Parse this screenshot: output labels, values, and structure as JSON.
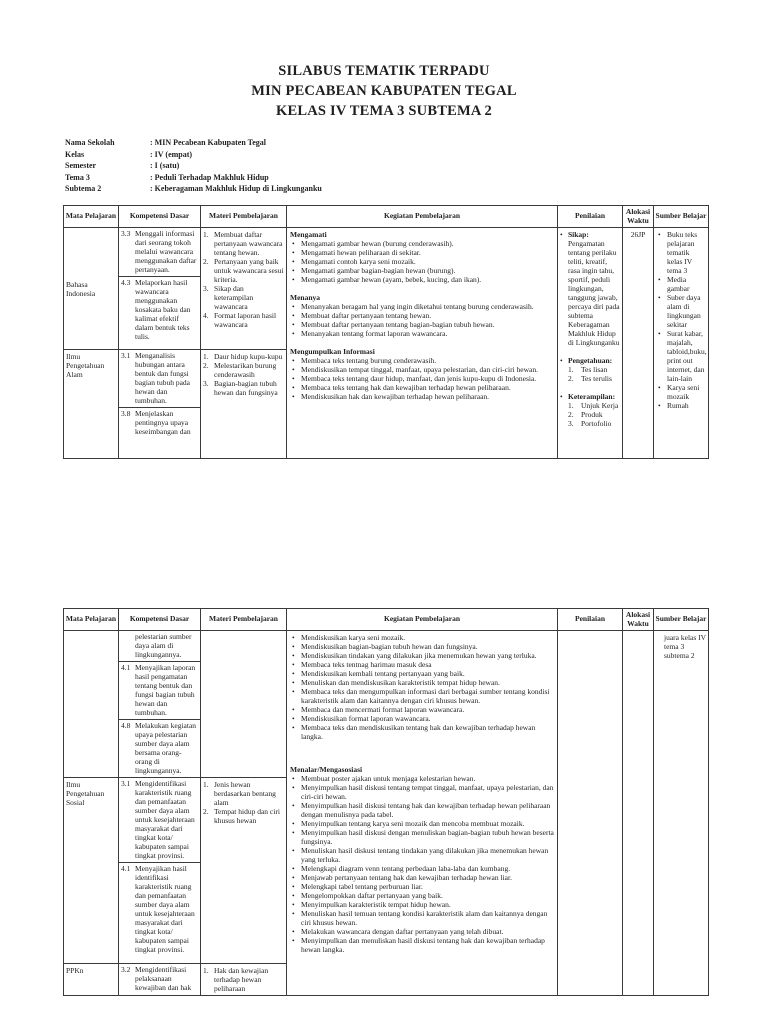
{
  "title_lines": [
    "SILABUS TEMATIK TERPADU",
    "MIN PECABEAN KABUPATEN TEGAL",
    "KELAS IV TEMA 3 SUBTEMA 2"
  ],
  "meta": [
    {
      "label": "Nama Sekolah",
      "value": ": MIN Pecabean Kabupaten Tegal"
    },
    {
      "label": "Kelas",
      "value": ": IV (empat)"
    },
    {
      "label": "Semester",
      "value": ": I (satu)"
    },
    {
      "label": "Tema 3",
      "value": ": Peduli Terhadap Makhluk Hidup"
    },
    {
      "label": "Subtema 2",
      "value": ": Keberagaman Makhluk Hidup di Lingkunganku"
    }
  ],
  "columns": [
    "Mata Pelajaran",
    "Kompetensi Dasar",
    "Materi Pembelajaran",
    "Kegiatan Pembelajaran",
    "Penilaian",
    "Alokasi Waktu",
    "Sumber Belajar"
  ],
  "t1": {
    "bi": {
      "label": "Bahasa Indonesia",
      "kd": [
        {
          "num": "3.3",
          "text": "Menggali informasi dari seorang tokoh melalui wawancara menggunakan daftar pertanyaan."
        },
        {
          "num": "4.3",
          "text": "Melaporkan hasil wawancara menggunakan kosakata baku dan kalimat efektif dalam bentuk teks tulis."
        }
      ],
      "materi": [
        "Membuat daftar pertanyaan wawancara tentang hewan.",
        "Pertanyaan yang baik untuk wawancara sesui kriteria.",
        "Sikap dan keterampilan wawancara",
        "Format laporan hasil wawancara"
      ]
    },
    "ipa": {
      "label": "Ilmu Pengetahuan Alam",
      "kd": [
        {
          "num": "3.1",
          "text": "Menganalisis hubungan antara bentuk dan fungsi bagian tubuh pada hewan dan tumbuhan."
        },
        {
          "num": "3.8",
          "text": "Menjelaskan pentingnya upaya keseimbangan dan"
        }
      ],
      "materi": [
        "Daur hidup kupu-kupu",
        "Melestarikan burung cenderawasih",
        "Bagian-bagian tubuh hewan dan fungsinya"
      ]
    },
    "kegiatan": [
      {
        "heading": "Mengamati",
        "items": [
          "Mengamati gambar hewan (burung cenderawasih).",
          "Mengamati hewan peliharaan di sekitar.",
          "Mengamati contoh karya seni mozaik.",
          "Mengamati gambar bagian-bagian hewan (burung).",
          "Mengamati gambar hewan (ayam, bebek, kucing, dan ikan)."
        ]
      },
      {
        "heading": "Menanya",
        "items": [
          "Menanyakan beragam hal yang ingin diketahui tentang burung cenderawasih.",
          "Membuat daftar pertanyaan tentang hewan.",
          "Membuat daftar pertanyaan tentang bagian-bagian tubuh hewan.",
          "Menanyakan tentang format laporan wawancara."
        ]
      },
      {
        "heading": "Mengumpulkan Informasi",
        "items": [
          "Membaca teks tentang burung cenderawasih.",
          "Mendiskusikan tempat tinggal, manfaat, upaya pelestarian, dan ciri-ciri hewan.",
          "Membaca teks tentang daur hidup, manfaat, dan jenis kupu-kupu di Indonesia.",
          "Membaca teks tentang hak dan kewajiban terhadap hewan peliharaan.",
          "Mendiskusikan hak dan kewajiban terhadap hewan peliharaan."
        ]
      }
    ],
    "penilaian": {
      "sikap_label": "Sikap:",
      "sikap_body": "Pengamatan tentang perilaku teliti, kreatif, rasa ingin tahu, sportif, peduli lingkungan, tanggung jawab, percaya diri pada subtema Keberagaman Makhluk Hidup di Lingkunganku",
      "pengetahuan_label": "Pengetahuan:",
      "pengetahuan_items": [
        "Tes lisan",
        "Tes terulis"
      ],
      "keterampilan_label": "Keterampilan:",
      "keterampilan_items": [
        "Unjuk Kerja",
        "Produk",
        "Portofolio"
      ]
    },
    "alokasi": "26JP",
    "sumber": [
      "Buku teks pelajaran tematik kelas IV tema 3",
      "Media gambar",
      "Suber daya alam di lingkungan sekitar",
      "Surat kabar, majalah, tabloid,buku, print out internet, dan lain-lain",
      "Karya seni mozaik",
      "Rumah"
    ]
  },
  "t2": {
    "rowa": {
      "kd": [
        {
          "num": "",
          "text": "pelestarian sumber daya alam di lingkungannya."
        },
        {
          "num": "4.1",
          "text": "Menyajikan laporan hasil pengamatan tentang bentuk dan fungsi bagian tubuh hewan dan tumbuhan."
        },
        {
          "num": "4.8",
          "text": "Melakukan kegiatan upaya pelestarian sumber daya alam bersama orang-orang di lingkungannya."
        }
      ]
    },
    "ips": {
      "label": "Ilmu Pengetahuan Sosial",
      "kd": [
        {
          "num": "3.1",
          "text": "Mengidentifikasi karakteristik ruang dan pemanfaatan sumber daya alam untuk kesejahteraan masyarakat dari tingkat kota/ kabupaten sampai tingkat provinsi."
        },
        {
          "num": "4.1",
          "text": "Menyajikan hasil identifikasi karakteristik ruang dan pemanfaatan sumber daya alam untuk kesejahteraan masyarakat dari tingkat kota/ kabupaten sampai tingkat provinsi."
        }
      ],
      "materi": [
        "Jenis hewan berdasarkan bentang alam",
        "Tempat hidup dan ciri khusus hewan"
      ]
    },
    "ppkn": {
      "label": "PPKn",
      "kd": [
        {
          "num": "3.2",
          "text": "Mengidentifikasi pelaksanaan kewajiban dan hak"
        }
      ],
      "materi": [
        "Hak dan kewajian terhadap hewan peliharaan"
      ]
    },
    "kegiatan_cont": [
      "Mendiskusikan karya seni mozaik.",
      "Mendiskusikan bagian-bagian tubuh hewan dan fungsinya.",
      "Mendiskusikan tindakan yang dilakukan jika menemukan hewan yang terluka.",
      "Membaca teks tentnag harimau masuk desa",
      "Mendiskusikan kembali tentang pertanyaan yang baik.",
      "Menuliskan dan mendiskusikan karakteristik tempat hidup hewan.",
      "Membaca teks dan mengumpulkan informasi dari berbagai sumber tentang kondisi karakteristik alam dan kaitannya dengan ciri khusus hewan.",
      "Membaca dan mencermati format laporan wawancara.",
      "Mendiskusikan format laporan wawancara.",
      "Membaca teks dan mendiskusikan tentang hak dan kewajiban terhadap hewan langka."
    ],
    "kegiatan": {
      "heading": "Menalar/Mengasosiasi",
      "items": [
        "Membuat poster ajakan untuk menjaga kelestarian hewan.",
        "Menyimpulkan hasil diskusi tentang tempat tinggal, manfaat, upaya pelestarian, dan ciri-ciri hewan.",
        "Menyimpulkan hasil diskusi tentang hak dan kewajiban terhadap hewan peliharaan dengan menulisnya pada tabel.",
        "Menyimpulkan tentang karya seni mozaik dan mencoba membuat mozaik.",
        "Menyimpulkan hasil diskusi dengan menuliskan bagian-bagian tubuh hewan beserta fungsinya.",
        "Menuliskan hasil diskusi tentang tindakan yang dilakukan jika menemukan hewan yang terluka.",
        "Melengkapi diagram venn tentang perbedaan laba-laba dan kumbang.",
        "Menjawab pertanyaan tentang hak dan kewajiban terhadap hewan liar.",
        "Melengkapi tabel tentang perburuan liar.",
        "Mengelompokkan daftar pertanyaan yang baik.",
        "Menyimpulkan karakteristik tempat hidup hewan.",
        "Menuliskan hasil temuan tentang kondisi karakteristik alam dan kaitannya dengan ciri khusus hewan.",
        "Melakukan wawancara dengan daftar pertanyaan yang telah dibuat.",
        "Menyimpulkan dan menuliskan hasil diskusi tentang hak dan kewajiban terhadap hewan langka."
      ]
    },
    "sumber_cont": "juara kelas IV tema 3 subtema 2"
  }
}
